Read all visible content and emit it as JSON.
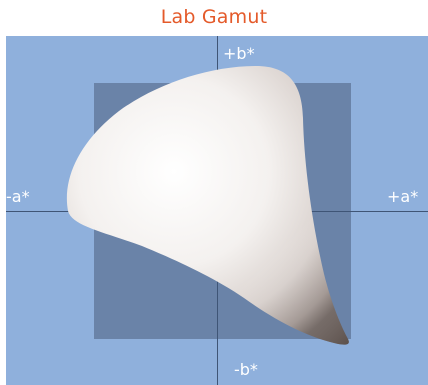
{
  "title": "Lab Gamut",
  "axes": {
    "plus_b": "+b*",
    "minus_b": "-b*",
    "minus_a": "-a*",
    "plus_a": "+a*"
  },
  "colors": {
    "title": "#e45a2a",
    "background": "#8fb0dc",
    "inner_square": "#6a83a8",
    "axis": "#3f5576",
    "gamut_light": "#ffffff",
    "gamut_shadow": "#7a6f6a"
  }
}
